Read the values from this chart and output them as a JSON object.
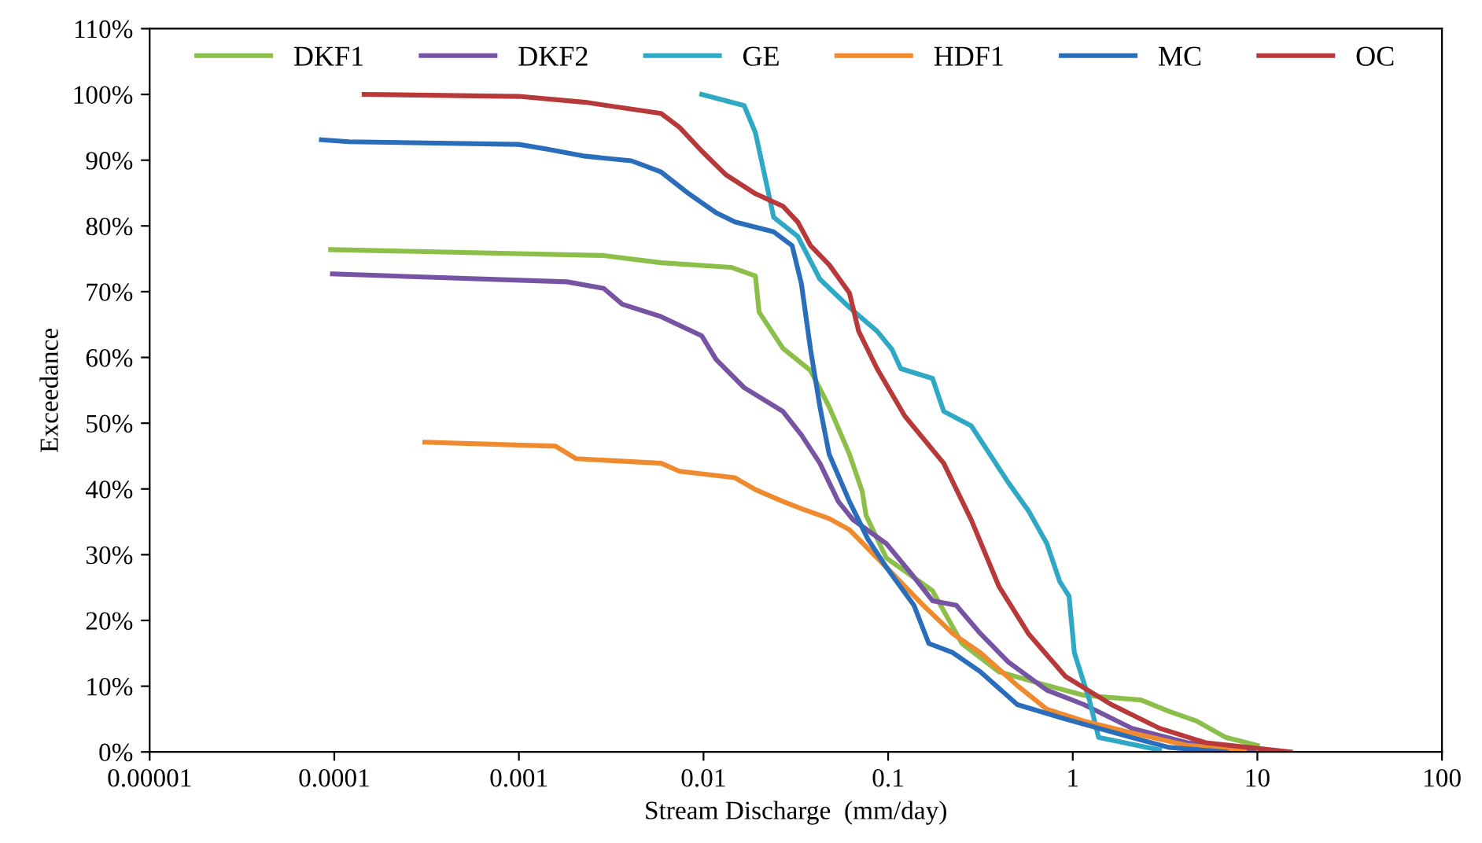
{
  "chart_data": {
    "type": "line",
    "xlabel": "Stream Discharge  (mm/day)",
    "ylabel": "Exceedance",
    "log": "x",
    "legend": "top",
    "grid": false,
    "line_style": "solid",
    "marker": "none",
    "xlim": [
      1e-05,
      100
    ],
    "xticks": [
      {
        "value": 1e-05,
        "label": "0.00001"
      },
      {
        "value": 0.0001,
        "label": "0.0001"
      },
      {
        "value": 0.001,
        "label": "0.001"
      },
      {
        "value": 0.01,
        "label": "0.01"
      },
      {
        "value": 0.1,
        "label": "0.1"
      },
      {
        "value": 1,
        "label": "1"
      },
      {
        "value": 10,
        "label": "10"
      },
      {
        "value": 100,
        "label": "100"
      }
    ],
    "ylim": [
      0,
      110
    ],
    "yticks": [
      {
        "value": 0,
        "label": "0%"
      },
      {
        "value": 10,
        "label": "10%"
      },
      {
        "value": 20,
        "label": "20%"
      },
      {
        "value": 30,
        "label": "30%"
      },
      {
        "value": 40,
        "label": "40%"
      },
      {
        "value": 50,
        "label": "50%"
      },
      {
        "value": 60,
        "label": "60%"
      },
      {
        "value": 70,
        "label": "70%"
      },
      {
        "value": 80,
        "label": "80%"
      },
      {
        "value": 90,
        "label": "90%"
      },
      {
        "value": 100,
        "label": "100%"
      },
      {
        "value": 110,
        "label": "110%"
      }
    ],
    "series": [
      {
        "name": "DKF1",
        "color": "#8cbf4a",
        "x": [
          9.55e-05,
          0.00288,
          0.0059,
          0.0141,
          0.0191,
          0.02,
          0.0269,
          0.038,
          0.0479,
          0.0617,
          0.0724,
          0.0759,
          0.0977,
          0.174,
          0.251,
          0.398,
          0.646,
          1.15,
          2.34,
          3.31,
          4.68,
          6.76,
          10
        ],
        "values": [
          76.4,
          75.5,
          74.4,
          73.7,
          72.4,
          66.9,
          61.4,
          58.0,
          52.5,
          45.3,
          39.6,
          36.0,
          29.5,
          24.5,
          16.5,
          12.2,
          10.5,
          8.6,
          7.9,
          6.2,
          4.7,
          2.2,
          1.0
        ]
      },
      {
        "name": "DKF2",
        "color": "#7654a3",
        "x": [
          9.77e-05,
          0.00182,
          0.00288,
          0.00363,
          0.00589,
          0.00977,
          0.0117,
          0.0166,
          0.0269,
          0.0339,
          0.0427,
          0.0537,
          0.0646,
          0.0977,
          0.138,
          0.174,
          0.234,
          0.316,
          0.447,
          0.724,
          1.15,
          2.09,
          4.17,
          9.55
        ],
        "values": [
          72.7,
          71.5,
          70.5,
          68.1,
          66.2,
          63.3,
          59.7,
          55.4,
          51.8,
          48.2,
          43.9,
          38.1,
          35.3,
          31.7,
          26.6,
          23.0,
          22.3,
          18.0,
          13.7,
          9.4,
          7.2,
          3.6,
          1.4,
          0.3
        ]
      },
      {
        "name": "GE",
        "color": "#2fa8c5",
        "x": [
          0.00977,
          0.0166,
          0.0191,
          0.0214,
          0.024,
          0.0324,
          0.0427,
          0.0617,
          0.0871,
          0.105,
          0.117,
          0.174,
          0.2,
          0.282,
          0.355,
          0.447,
          0.575,
          0.724,
          0.851,
          0.955,
          1.02,
          1.23,
          1.38,
          2.95
        ],
        "values": [
          100,
          98.3,
          94.2,
          87.8,
          81.3,
          78.4,
          71.9,
          67.6,
          64.0,
          61.2,
          58.3,
          56.8,
          51.8,
          49.6,
          45.3,
          41.0,
          36.7,
          31.7,
          25.9,
          23.7,
          15.1,
          7.9,
          2.2,
          0.3
        ]
      },
      {
        "name": "HDF1",
        "color": "#ef8a2e",
        "x": [
          0.000309,
          0.00158,
          0.00204,
          0.00589,
          0.00741,
          0.0148,
          0.0191,
          0.0269,
          0.0339,
          0.0479,
          0.0617,
          0.0977,
          0.155,
          0.224,
          0.316,
          0.501,
          0.724,
          1.15,
          2.09,
          4.17,
          8.51
        ],
        "values": [
          47.1,
          46.5,
          44.6,
          43.9,
          42.7,
          41.7,
          39.9,
          38.1,
          37.0,
          35.5,
          33.8,
          28.1,
          22.3,
          18.0,
          15.1,
          10.1,
          6.5,
          4.7,
          2.9,
          1.0,
          0.3
        ]
      },
      {
        "name": "MC",
        "color": "#2a6ebb",
        "x": [
          8.51e-05,
          0.00012,
          0.001,
          0.00141,
          0.00229,
          0.00407,
          0.00589,
          0.00832,
          0.0117,
          0.0148,
          0.024,
          0.0302,
          0.0339,
          0.038,
          0.0427,
          0.0479,
          0.0617,
          0.0776,
          0.0977,
          0.138,
          0.166,
          0.224,
          0.316,
          0.501,
          0.912,
          2.09,
          3.31,
          6.76
        ],
        "values": [
          93.1,
          92.8,
          92.4,
          91.7,
          90.6,
          89.9,
          88.2,
          84.9,
          82.0,
          80.6,
          79.1,
          77.0,
          71.2,
          61.2,
          52.5,
          45.3,
          38.1,
          32.4,
          28.1,
          22.3,
          16.5,
          15.1,
          12.2,
          7.2,
          5.0,
          2.2,
          0.7,
          0
        ]
      },
      {
        "name": "OC",
        "color": "#b8393a",
        "x": [
          0.000145,
          0.001,
          0.00229,
          0.00589,
          0.00741,
          0.00977,
          0.0132,
          0.0191,
          0.0269,
          0.0324,
          0.038,
          0.0479,
          0.0617,
          0.0692,
          0.0871,
          0.123,
          0.2,
          0.282,
          0.398,
          0.575,
          0.912,
          1.62,
          2.95,
          5.25,
          15.1
        ],
        "values": [
          100,
          99.7,
          98.8,
          97.1,
          95.0,
          91.4,
          87.8,
          84.9,
          83.0,
          80.6,
          77.0,
          74.1,
          69.8,
          64.0,
          58.3,
          51.1,
          43.9,
          35.3,
          25.2,
          18.0,
          11.5,
          7.2,
          3.6,
          1.4,
          0
        ]
      }
    ]
  }
}
